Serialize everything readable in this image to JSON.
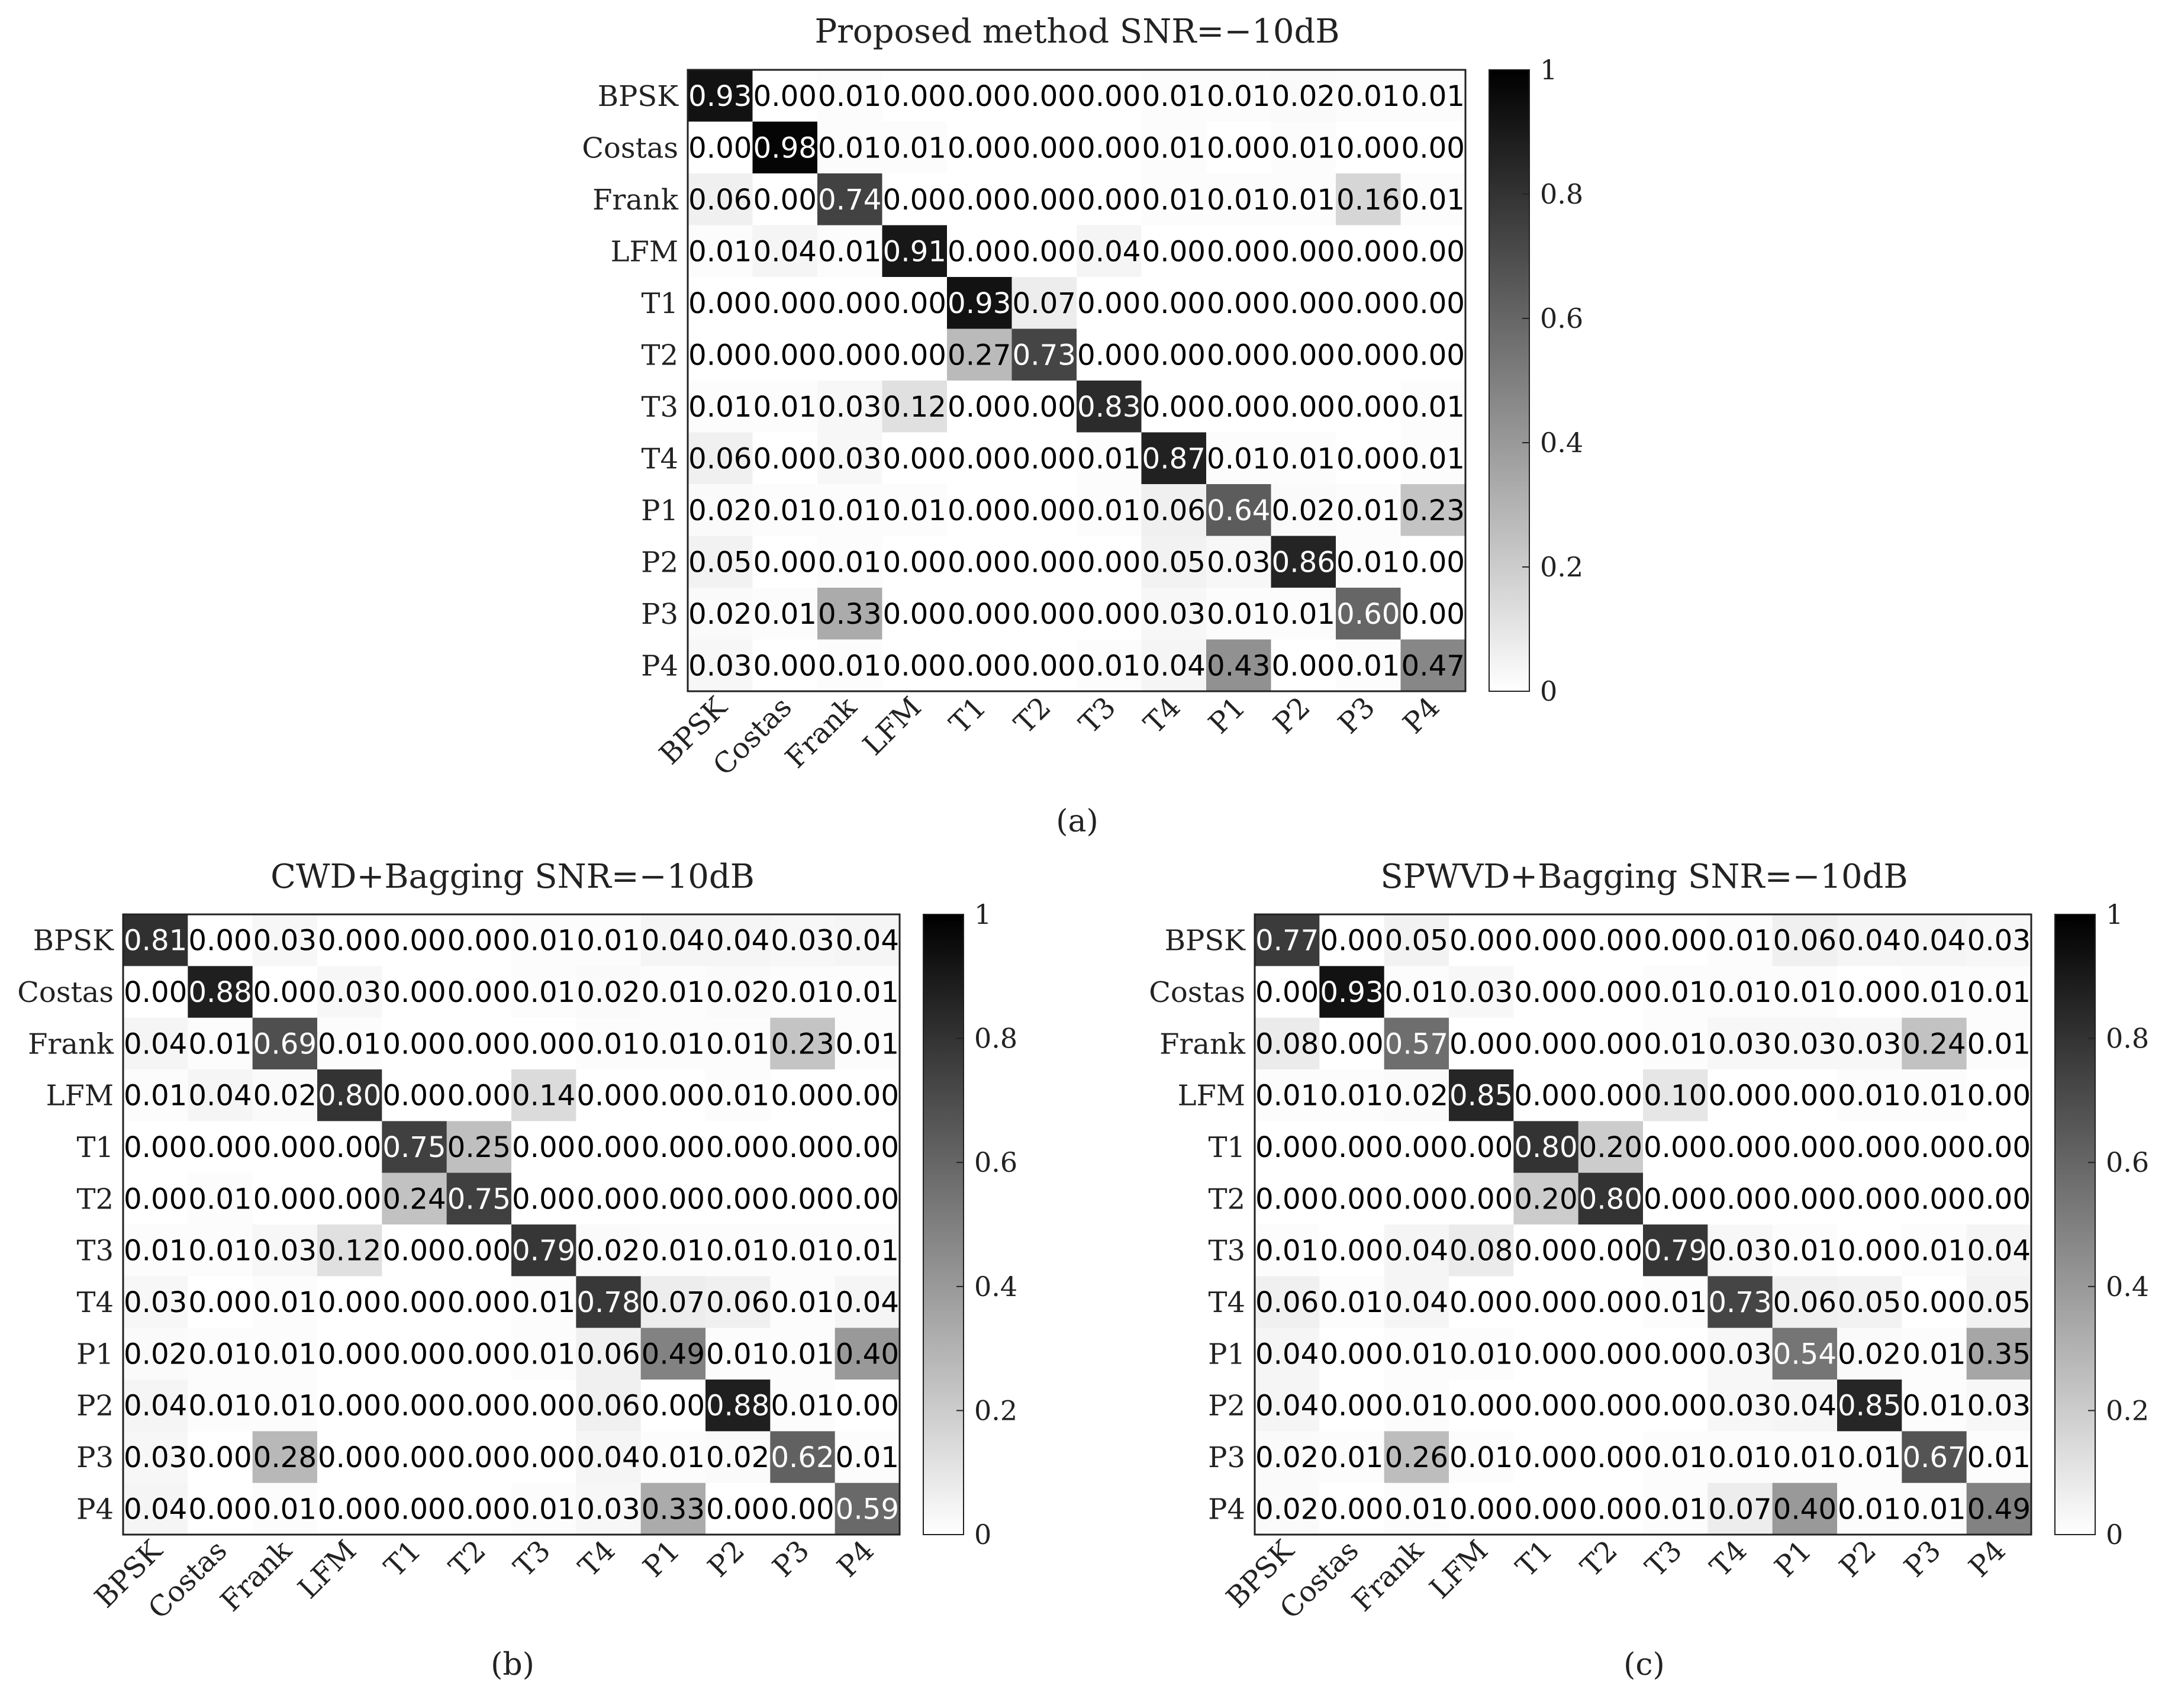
{
  "labels": [
    "BPSK",
    "Costas",
    "Frank",
    "LFM",
    "T1",
    "T2",
    "T3",
    "T4",
    "P1",
    "P2",
    "P3",
    "P4"
  ],
  "colorbar_ticks": [
    "0",
    "0.2",
    "0.4",
    "0.6",
    "0.8",
    "1"
  ],
  "colors": {
    "low": "#ffffff",
    "high": "#000000",
    "text_dark": "#000000",
    "text_light": "#ffffff",
    "frame": "#222222"
  },
  "chart_data": [
    {
      "type": "heatmap",
      "title": "Proposed method SNR=−10dB",
      "caption": "(a)",
      "x": [
        "BPSK",
        "Costas",
        "Frank",
        "LFM",
        "T1",
        "T2",
        "T3",
        "T4",
        "P1",
        "P2",
        "P3",
        "P4"
      ],
      "y": [
        "BPSK",
        "Costas",
        "Frank",
        "LFM",
        "T1",
        "T2",
        "T3",
        "T4",
        "P1",
        "P2",
        "P3",
        "P4"
      ],
      "value_range": [
        0,
        1
      ],
      "values": [
        [
          0.93,
          0.0,
          0.01,
          0.0,
          0.0,
          0.0,
          0.0,
          0.01,
          0.01,
          0.02,
          0.01,
          0.01
        ],
        [
          0.0,
          0.98,
          0.01,
          0.01,
          0.0,
          0.0,
          0.0,
          0.01,
          0.0,
          0.01,
          0.0,
          0.0
        ],
        [
          0.06,
          0.0,
          0.74,
          0.0,
          0.0,
          0.0,
          0.0,
          0.01,
          0.01,
          0.01,
          0.16,
          0.01
        ],
        [
          0.01,
          0.04,
          0.01,
          0.91,
          0.0,
          0.0,
          0.04,
          0.0,
          0.0,
          0.0,
          0.0,
          0.0
        ],
        [
          0.0,
          0.0,
          0.0,
          0.0,
          0.93,
          0.07,
          0.0,
          0.0,
          0.0,
          0.0,
          0.0,
          0.0
        ],
        [
          0.0,
          0.0,
          0.0,
          0.0,
          0.27,
          0.73,
          0.0,
          0.0,
          0.0,
          0.0,
          0.0,
          0.0
        ],
        [
          0.01,
          0.01,
          0.03,
          0.12,
          0.0,
          0.0,
          0.83,
          0.0,
          0.0,
          0.0,
          0.0,
          0.01
        ],
        [
          0.06,
          0.0,
          0.03,
          0.0,
          0.0,
          0.0,
          0.01,
          0.87,
          0.01,
          0.01,
          0.0,
          0.01
        ],
        [
          0.02,
          0.01,
          0.01,
          0.01,
          0.0,
          0.0,
          0.01,
          0.06,
          0.64,
          0.02,
          0.01,
          0.23
        ],
        [
          0.05,
          0.0,
          0.01,
          0.0,
          0.0,
          0.0,
          0.0,
          0.05,
          0.03,
          0.86,
          0.01,
          0.0
        ],
        [
          0.02,
          0.01,
          0.33,
          0.0,
          0.0,
          0.0,
          0.0,
          0.03,
          0.01,
          0.01,
          0.6,
          0.0
        ],
        [
          0.03,
          0.0,
          0.01,
          0.0,
          0.0,
          0.0,
          0.01,
          0.04,
          0.43,
          0.0,
          0.01,
          0.47
        ]
      ]
    },
    {
      "type": "heatmap",
      "title": "CWD+Bagging SNR=−10dB",
      "caption": "(b)",
      "x": [
        "BPSK",
        "Costas",
        "Frank",
        "LFM",
        "T1",
        "T2",
        "T3",
        "T4",
        "P1",
        "P2",
        "P3",
        "P4"
      ],
      "y": [
        "BPSK",
        "Costas",
        "Frank",
        "LFM",
        "T1",
        "T2",
        "T3",
        "T4",
        "P1",
        "P2",
        "P3",
        "P4"
      ],
      "value_range": [
        0,
        1
      ],
      "values": [
        [
          0.81,
          0.0,
          0.03,
          0.0,
          0.0,
          0.0,
          0.01,
          0.01,
          0.04,
          0.04,
          0.03,
          0.04
        ],
        [
          0.0,
          0.88,
          0.0,
          0.03,
          0.0,
          0.0,
          0.01,
          0.02,
          0.01,
          0.02,
          0.01,
          0.01
        ],
        [
          0.04,
          0.01,
          0.69,
          0.01,
          0.0,
          0.0,
          0.0,
          0.01,
          0.01,
          0.01,
          0.23,
          0.01
        ],
        [
          0.01,
          0.04,
          0.02,
          0.8,
          0.0,
          0.0,
          0.14,
          0.0,
          0.0,
          0.01,
          0.0,
          0.0
        ],
        [
          0.0,
          0.0,
          0.0,
          0.0,
          0.75,
          0.25,
          0.0,
          0.0,
          0.0,
          0.0,
          0.0,
          0.0
        ],
        [
          0.0,
          0.01,
          0.0,
          0.0,
          0.24,
          0.75,
          0.0,
          0.0,
          0.0,
          0.0,
          0.0,
          0.0
        ],
        [
          0.01,
          0.01,
          0.03,
          0.12,
          0.0,
          0.0,
          0.79,
          0.02,
          0.01,
          0.01,
          0.01,
          0.01
        ],
        [
          0.03,
          0.0,
          0.01,
          0.0,
          0.0,
          0.0,
          0.01,
          0.78,
          0.07,
          0.06,
          0.01,
          0.04
        ],
        [
          0.02,
          0.01,
          0.01,
          0.0,
          0.0,
          0.0,
          0.01,
          0.06,
          0.49,
          0.01,
          0.01,
          0.4
        ],
        [
          0.04,
          0.01,
          0.01,
          0.0,
          0.0,
          0.0,
          0.0,
          0.06,
          0.0,
          0.88,
          0.01,
          0.0
        ],
        [
          0.03,
          0.0,
          0.28,
          0.0,
          0.0,
          0.0,
          0.0,
          0.04,
          0.01,
          0.02,
          0.62,
          0.01
        ],
        [
          0.04,
          0.0,
          0.01,
          0.0,
          0.0,
          0.0,
          0.01,
          0.03,
          0.33,
          0.0,
          0.0,
          0.59
        ]
      ]
    },
    {
      "type": "heatmap",
      "title": "SPWVD+Bagging SNR=−10dB",
      "caption": "(c)",
      "x": [
        "BPSK",
        "Costas",
        "Frank",
        "LFM",
        "T1",
        "T2",
        "T3",
        "T4",
        "P1",
        "P2",
        "P3",
        "P4"
      ],
      "y": [
        "BPSK",
        "Costas",
        "Frank",
        "LFM",
        "T1",
        "T2",
        "T3",
        "T4",
        "P1",
        "P2",
        "P3",
        "P4"
      ],
      "value_range": [
        0,
        1
      ],
      "values": [
        [
          0.77,
          0.0,
          0.05,
          0.0,
          0.0,
          0.0,
          0.0,
          0.01,
          0.06,
          0.04,
          0.04,
          0.03
        ],
        [
          0.0,
          0.93,
          0.01,
          0.03,
          0.0,
          0.0,
          0.01,
          0.01,
          0.01,
          0.0,
          0.01,
          0.01
        ],
        [
          0.08,
          0.0,
          0.57,
          0.0,
          0.0,
          0.0,
          0.01,
          0.03,
          0.03,
          0.03,
          0.24,
          0.01
        ],
        [
          0.01,
          0.01,
          0.02,
          0.85,
          0.0,
          0.0,
          0.1,
          0.0,
          0.0,
          0.01,
          0.01,
          0.0
        ],
        [
          0.0,
          0.0,
          0.0,
          0.0,
          0.8,
          0.2,
          0.0,
          0.0,
          0.0,
          0.0,
          0.0,
          0.0
        ],
        [
          0.0,
          0.0,
          0.0,
          0.0,
          0.2,
          0.8,
          0.0,
          0.0,
          0.0,
          0.0,
          0.0,
          0.0
        ],
        [
          0.01,
          0.0,
          0.04,
          0.08,
          0.0,
          0.0,
          0.79,
          0.03,
          0.01,
          0.0,
          0.01,
          0.04
        ],
        [
          0.06,
          0.01,
          0.04,
          0.0,
          0.0,
          0.0,
          0.01,
          0.73,
          0.06,
          0.05,
          0.0,
          0.05
        ],
        [
          0.04,
          0.0,
          0.01,
          0.01,
          0.0,
          0.0,
          0.0,
          0.03,
          0.54,
          0.02,
          0.01,
          0.35
        ],
        [
          0.04,
          0.0,
          0.01,
          0.0,
          0.0,
          0.0,
          0.0,
          0.03,
          0.04,
          0.85,
          0.01,
          0.03
        ],
        [
          0.02,
          0.01,
          0.26,
          0.01,
          0.0,
          0.0,
          0.01,
          0.01,
          0.01,
          0.01,
          0.67,
          0.01
        ],
        [
          0.02,
          0.0,
          0.01,
          0.0,
          0.0,
          0.0,
          0.01,
          0.07,
          0.4,
          0.01,
          0.01,
          0.49
        ]
      ]
    }
  ]
}
